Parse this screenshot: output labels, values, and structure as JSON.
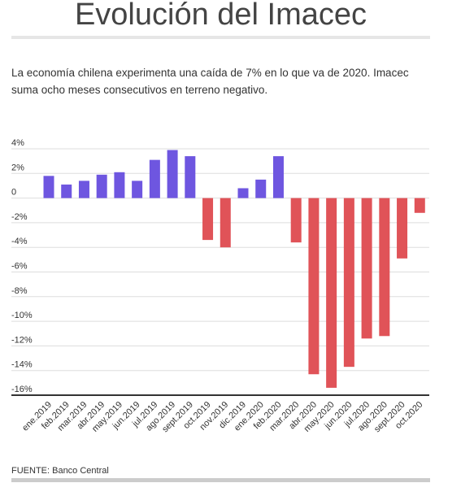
{
  "header": {
    "title": "Evolución del Imacec",
    "subtitle": "La economía chilena experimenta una caída de 7% en lo que va de 2020. Imacec suma ocho meses consecutivos en terreno negativo."
  },
  "footer": {
    "source": "FUENTE: Banco Central"
  },
  "colors": {
    "positive": "#6e56e0",
    "negative": "#e05358",
    "grid": "#dddddd",
    "axis": "#333333"
  },
  "chart_data": {
    "type": "bar",
    "title": "Evolución del Imacec",
    "xlabel": "",
    "ylabel": "",
    "ylim": [
      -16,
      4
    ],
    "yticks": [
      4,
      2,
      0,
      -2,
      -4,
      -6,
      -8,
      -10,
      -12,
      -14,
      -16
    ],
    "ytick_labels": [
      "4%",
      "2%",
      "0",
      "-2%",
      "-4%",
      "-6%",
      "-8%",
      "-10%",
      "-12%",
      "-14%",
      "-16%"
    ],
    "grid": true,
    "legend": "none",
    "categories": [
      "ene.2019",
      "feb.2019",
      "mar.2019",
      "abr.2019",
      "may.2019",
      "jun.2019",
      "jul.2019",
      "ago.2019",
      "sept.2019",
      "oct.2019",
      "nov.2019",
      "dic.2019",
      "ene.2020",
      "feb.2020",
      "mar.2020",
      "abr.2020",
      "may.2020",
      "jun.2020",
      "jul.2020",
      "ago.2020",
      "sept.2020",
      "oct.2020"
    ],
    "values": [
      1.8,
      1.1,
      1.4,
      1.9,
      2.1,
      1.4,
      3.1,
      3.9,
      3.4,
      -3.4,
      -4.0,
      0.8,
      1.5,
      3.4,
      -3.6,
      -14.3,
      -15.4,
      -13.7,
      -11.4,
      -11.2,
      -4.9,
      -1.2
    ]
  }
}
